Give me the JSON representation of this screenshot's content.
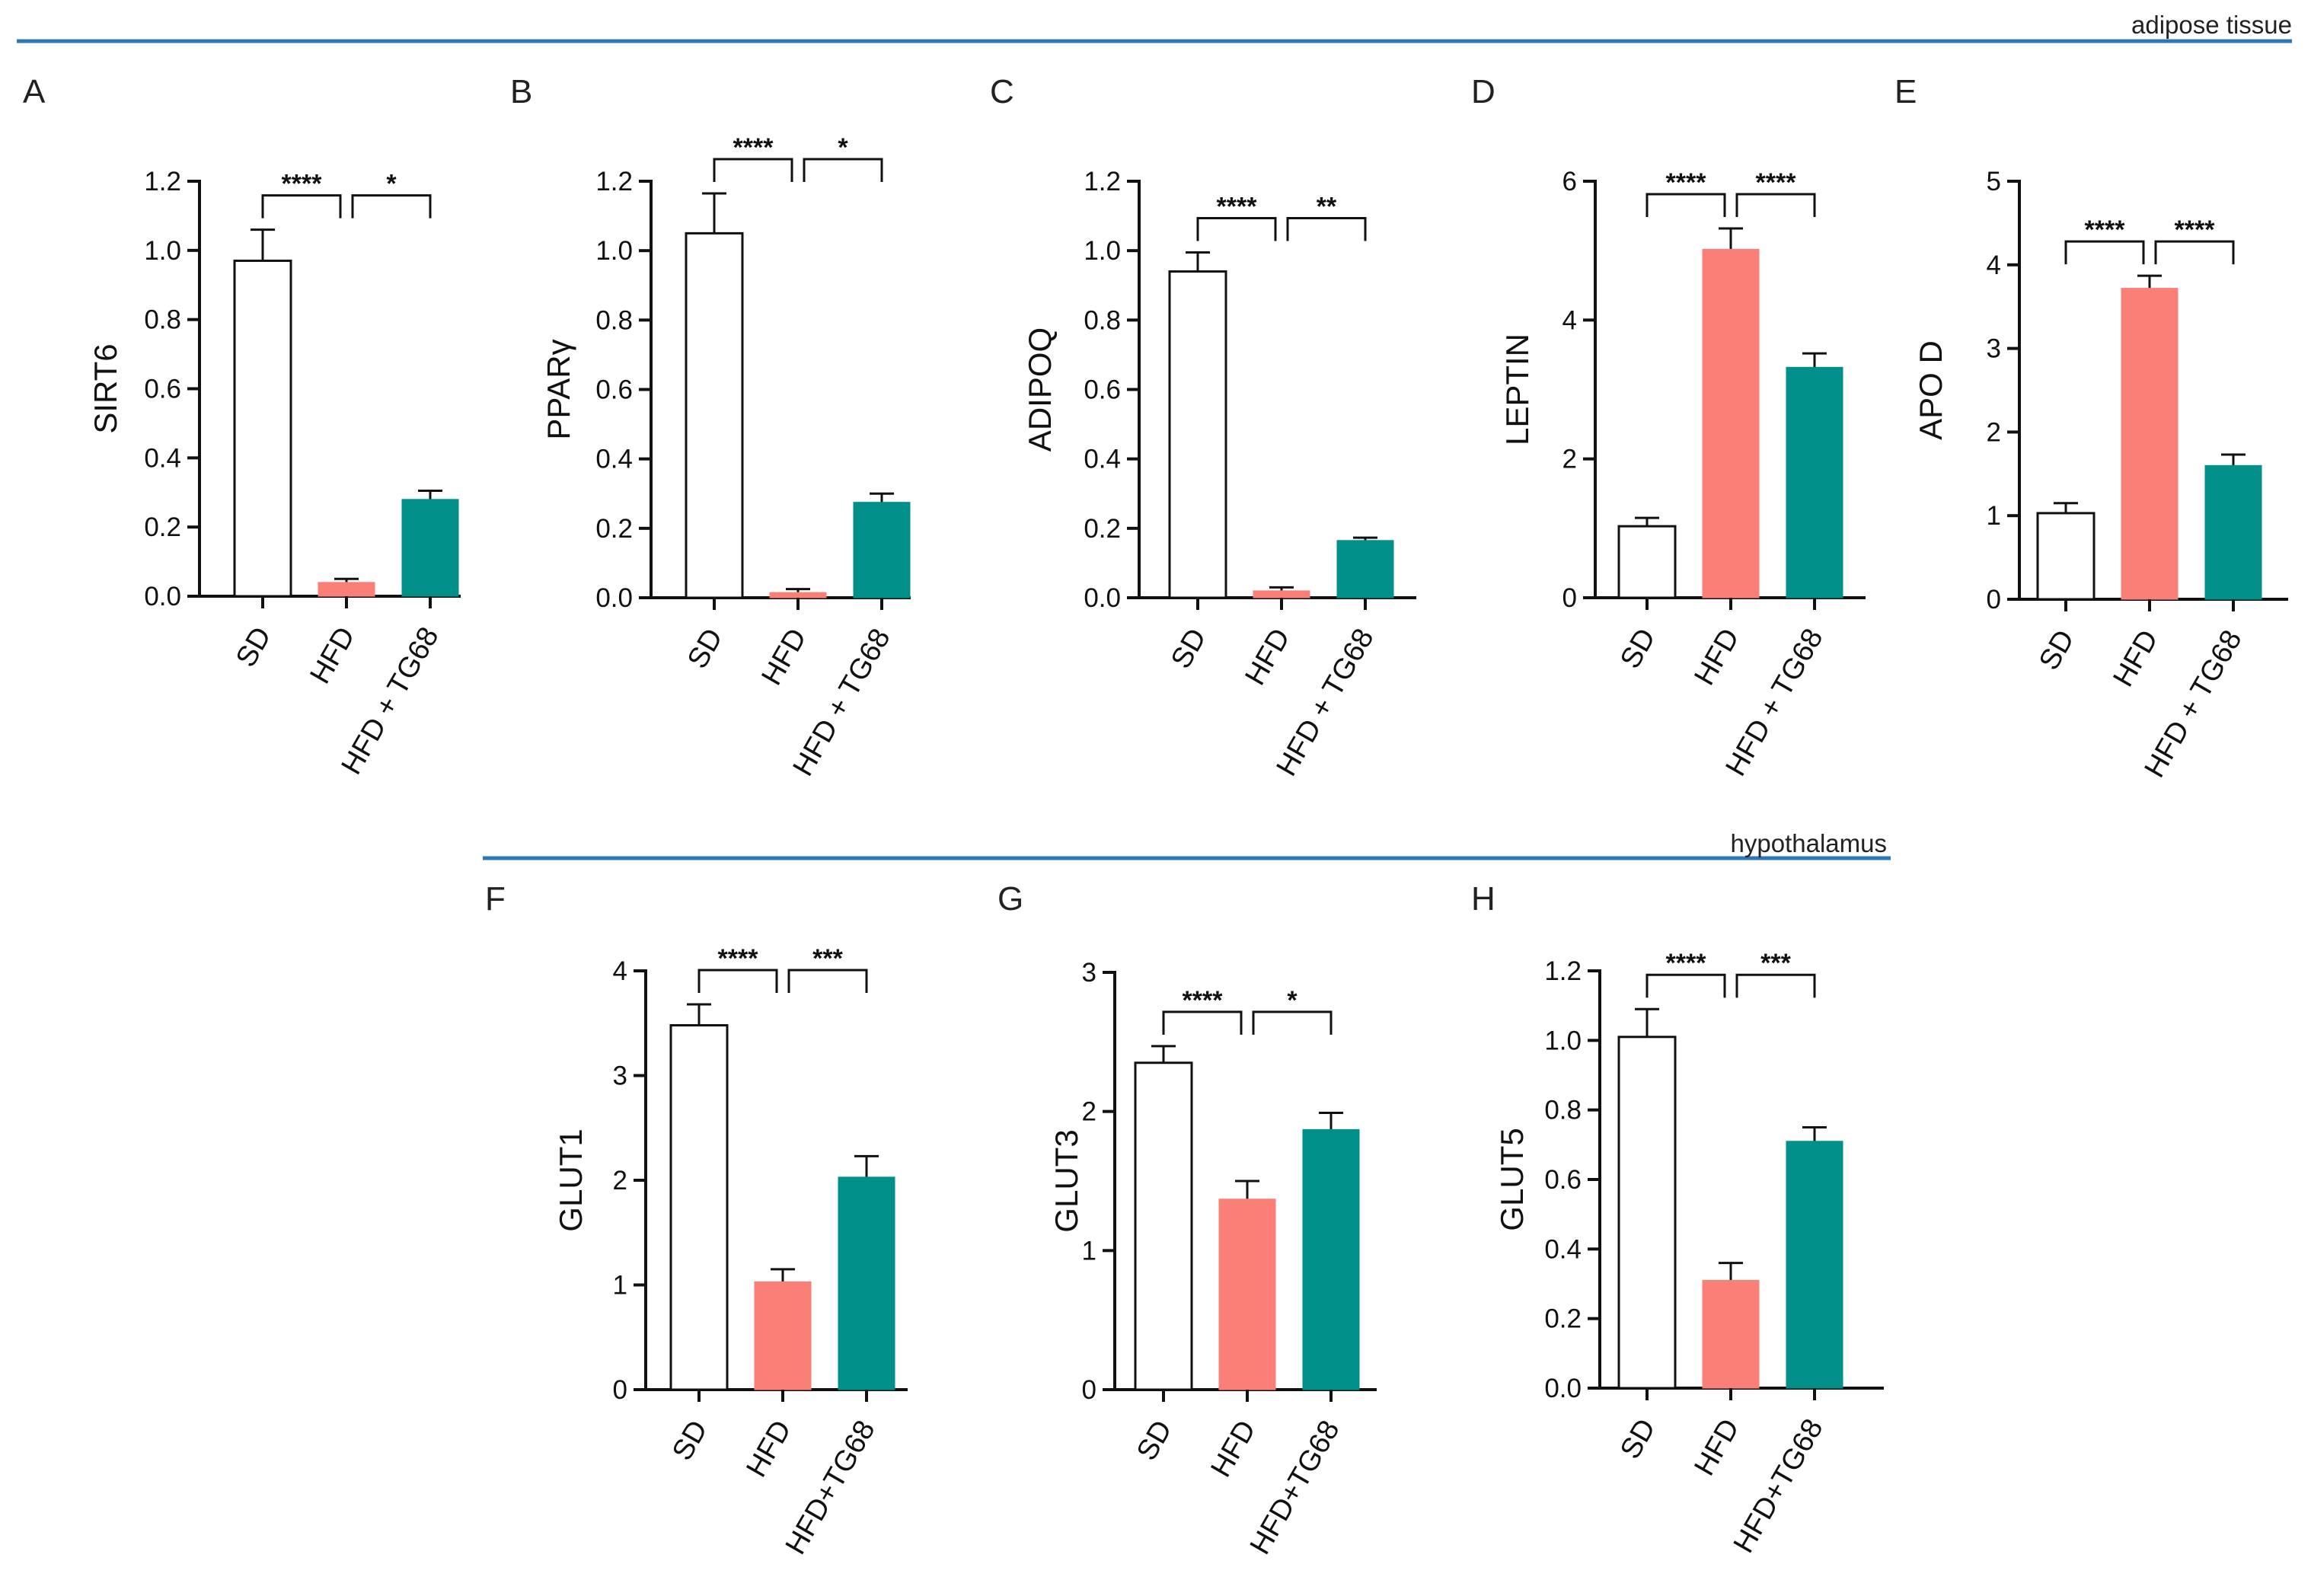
{
  "sections": [
    {
      "label": "adipose tissue"
    },
    {
      "label": "hypothalamus"
    }
  ],
  "colors": {
    "rule": "#2a78b8",
    "sd": "#ffffff",
    "hfd": "#fa7f77",
    "treated": "#009089",
    "axis": "#111111"
  },
  "chart_data": [
    {
      "type": "bar",
      "letter": "A",
      "section": "adipose tissue",
      "ylabel": "SIRT6",
      "categories": [
        "SD",
        "HFD",
        "HFD + TG68"
      ],
      "values": [
        0.97,
        0.04,
        0.28
      ],
      "errors": [
        0.09,
        0.01,
        0.025
      ],
      "ylim": [
        0,
        1.2
      ],
      "yticks": [
        "0.0",
        "0.2",
        "0.4",
        "0.6",
        "0.8",
        "1.0",
        "1.2"
      ],
      "significance": [
        {
          "from": 0,
          "to": 1,
          "label": "****"
        },
        {
          "from": 1,
          "to": 2,
          "label": "*"
        }
      ]
    },
    {
      "type": "bar",
      "letter": "B",
      "section": "adipose tissue",
      "ylabel": "PPARγ",
      "categories": [
        "SD",
        "HFD",
        "HFD + TG68"
      ],
      "values": [
        1.05,
        0.015,
        0.275
      ],
      "errors": [
        0.115,
        0.01,
        0.025
      ],
      "ylim": [
        0,
        1.2
      ],
      "yticks": [
        "0.0",
        "0.2",
        "0.4",
        "0.6",
        "0.8",
        "1.0",
        "1.2"
      ],
      "significance": [
        {
          "from": 0,
          "to": 1,
          "label": "****"
        },
        {
          "from": 1,
          "to": 2,
          "label": "*"
        }
      ]
    },
    {
      "type": "bar",
      "letter": "C",
      "section": "adipose tissue",
      "ylabel": "ADIPOQ",
      "categories": [
        "SD",
        "HFD",
        "HFD + TG68"
      ],
      "values": [
        0.94,
        0.02,
        0.165
      ],
      "errors": [
        0.055,
        0.01,
        0.008
      ],
      "ylim": [
        0,
        1.2
      ],
      "yticks": [
        "0.0",
        "0.2",
        "0.4",
        "0.6",
        "0.8",
        "1.0",
        "1.2"
      ],
      "significance": [
        {
          "from": 0,
          "to": 1,
          "label": "****"
        },
        {
          "from": 1,
          "to": 2,
          "label": "**"
        }
      ]
    },
    {
      "type": "bar",
      "letter": "D",
      "section": "adipose tissue",
      "ylabel": "LEPTIN",
      "categories": [
        "SD",
        "HFD",
        "HFD + TG68"
      ],
      "values": [
        1.03,
        5.02,
        3.32
      ],
      "errors": [
        0.12,
        0.3,
        0.2
      ],
      "ylim": [
        0,
        6
      ],
      "yticks": [
        "0",
        "2",
        "4",
        "6"
      ],
      "significance": [
        {
          "from": 0,
          "to": 1,
          "label": "****"
        },
        {
          "from": 1,
          "to": 2,
          "label": "****"
        }
      ]
    },
    {
      "type": "bar",
      "letter": "E",
      "section": "adipose tissue",
      "ylabel": "APO D",
      "categories": [
        "SD",
        "HFD",
        "HFD + TG68"
      ],
      "values": [
        1.03,
        3.72,
        1.6
      ],
      "errors": [
        0.12,
        0.15,
        0.13
      ],
      "ylim": [
        0,
        5
      ],
      "yticks": [
        "0",
        "1",
        "2",
        "3",
        "4",
        "5"
      ],
      "significance": [
        {
          "from": 0,
          "to": 1,
          "label": "****"
        },
        {
          "from": 1,
          "to": 2,
          "label": "****"
        }
      ]
    },
    {
      "type": "bar",
      "letter": "F",
      "section": "hypothalamus",
      "ylabel": "GLUT1",
      "categories": [
        "SD",
        "HFD",
        "HFD+TG68"
      ],
      "values": [
        3.48,
        1.03,
        2.03
      ],
      "errors": [
        0.2,
        0.12,
        0.2
      ],
      "ylim": [
        0,
        4
      ],
      "yticks": [
        "0",
        "1",
        "2",
        "3",
        "4"
      ],
      "significance": [
        {
          "from": 0,
          "to": 1,
          "label": "****"
        },
        {
          "from": 1,
          "to": 2,
          "label": "***"
        }
      ]
    },
    {
      "type": "bar",
      "letter": "G",
      "section": "hypothalamus",
      "ylabel": "GLUT3",
      "categories": [
        "SD",
        "HFD",
        "HFD+TG68"
      ],
      "values": [
        2.35,
        1.37,
        1.87
      ],
      "errors": [
        0.12,
        0.13,
        0.12
      ],
      "ylim": [
        0,
        3
      ],
      "yticks": [
        "0",
        "1",
        "2",
        "3"
      ],
      "significance": [
        {
          "from": 0,
          "to": 1,
          "label": "****"
        },
        {
          "from": 1,
          "to": 2,
          "label": "*"
        }
      ]
    },
    {
      "type": "bar",
      "letter": "H",
      "section": "hypothalamus",
      "ylabel": "GLUT5",
      "categories": [
        "SD",
        "HFD",
        "HFD+TG68"
      ],
      "values": [
        1.01,
        0.31,
        0.71
      ],
      "errors": [
        0.08,
        0.05,
        0.04
      ],
      "ylim": [
        0,
        1.2
      ],
      "yticks": [
        "0.0",
        "0.2",
        "0.4",
        "0.6",
        "0.8",
        "1.0",
        "1.2"
      ],
      "significance": [
        {
          "from": 0,
          "to": 1,
          "label": "****"
        },
        {
          "from": 1,
          "to": 2,
          "label": "***"
        }
      ]
    }
  ]
}
